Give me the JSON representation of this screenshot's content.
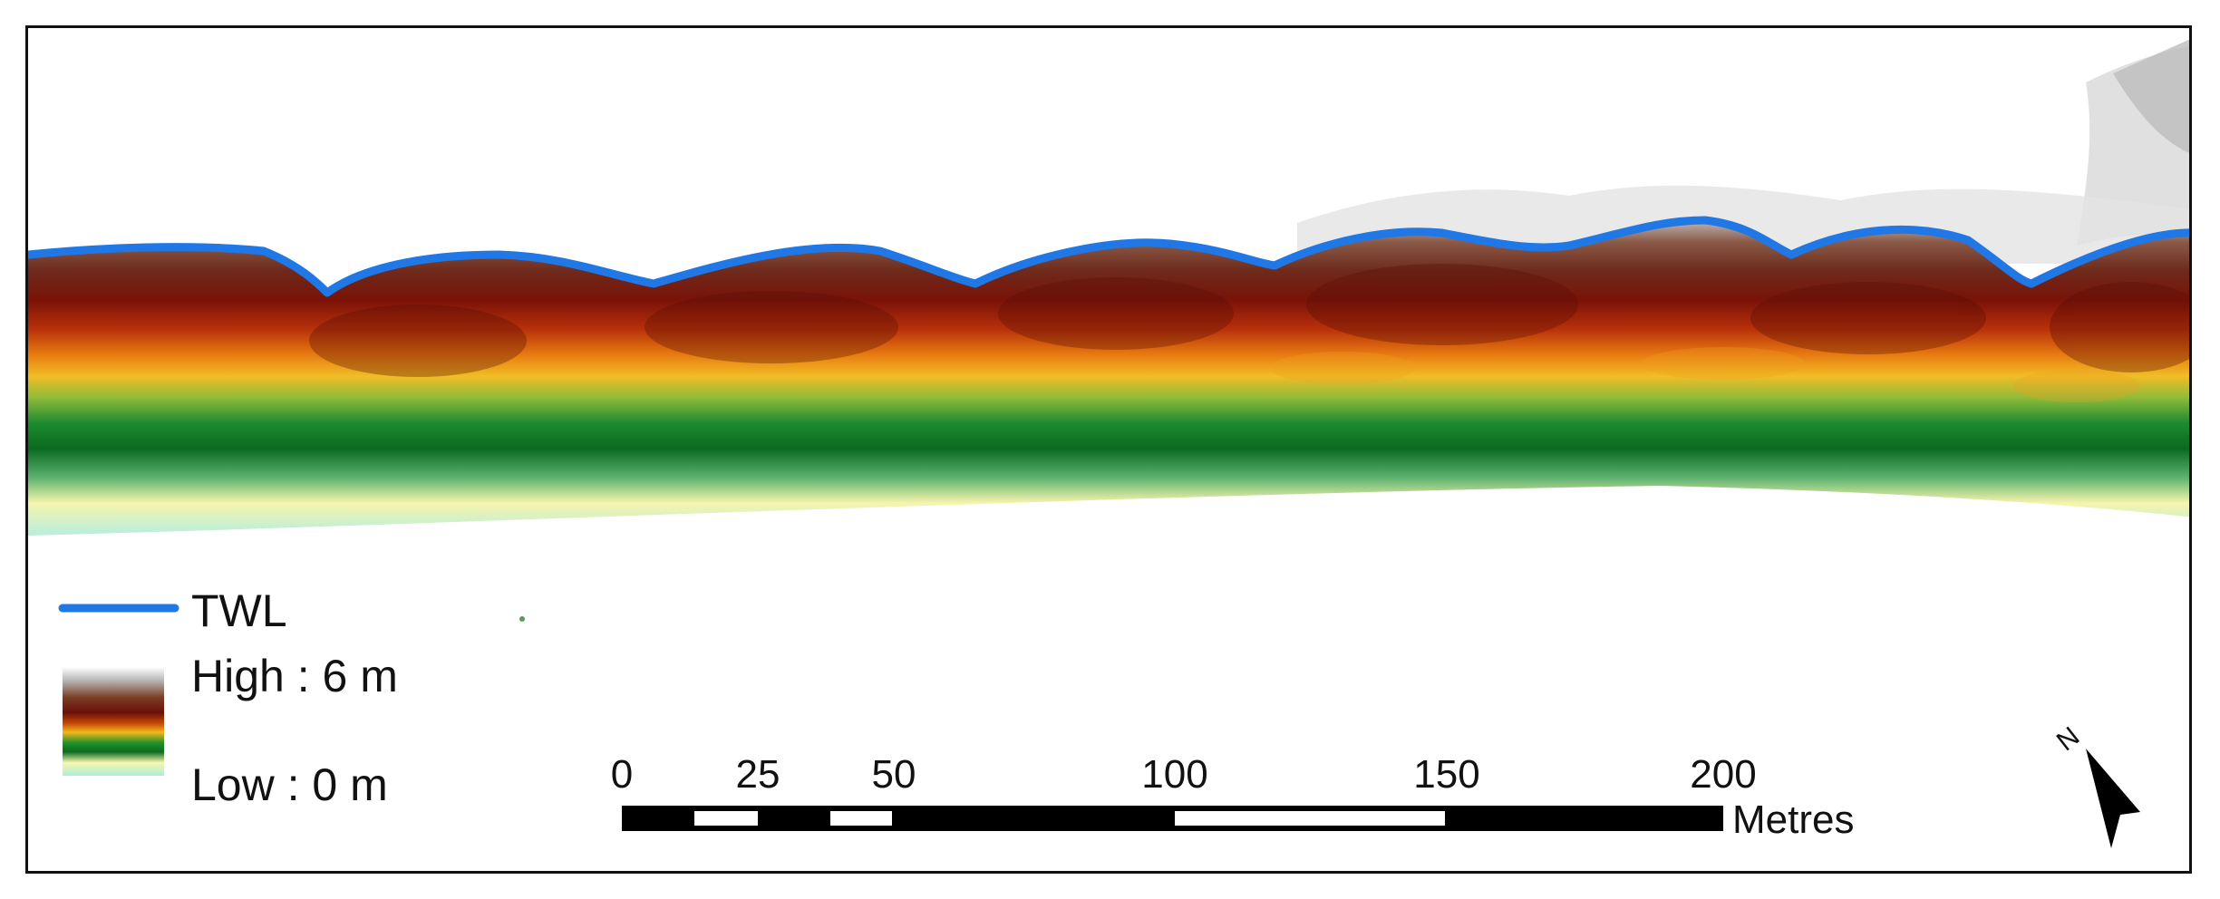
{
  "legend": {
    "line_label": "TWL",
    "line_color": "#1f78e6",
    "high_label": "High : 6 m",
    "low_label": "Low : 0 m",
    "ramp_colors": [
      "#ffffff",
      "#b9b9b9",
      "#7a3f26",
      "#6b0f0a",
      "#c84a05",
      "#f2b81b",
      "#1f8f2a",
      "#0b6b1f",
      "#f7f6b0",
      "#a9eed9"
    ]
  },
  "scale_bar": {
    "ticks": [
      "0",
      "25",
      "50",
      "100",
      "150",
      "200"
    ],
    "unit": "Metres"
  },
  "north_arrow": {
    "label": "N",
    "icon": "north-arrow-icon"
  }
}
